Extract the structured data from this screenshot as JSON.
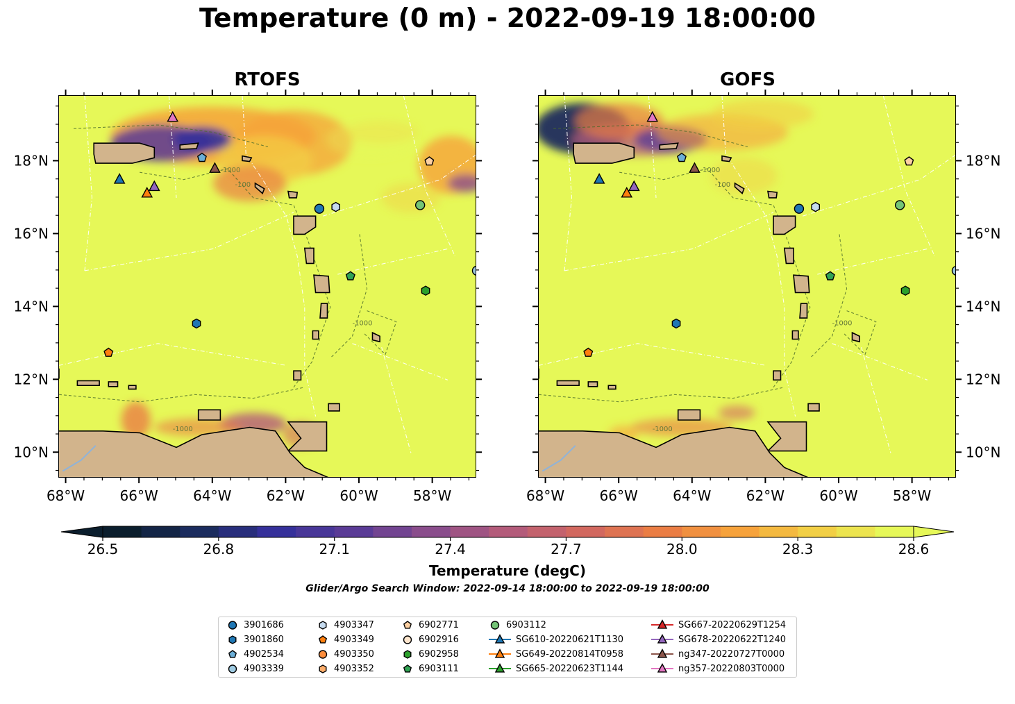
{
  "title": "Temperature (0 m) - 2022-09-19 18:00:00",
  "panels": [
    {
      "title": "RTOFS"
    },
    {
      "title": "GOFS"
    }
  ],
  "axes": {
    "x_ticks": [
      "68°W",
      "66°W",
      "64°W",
      "62°W",
      "60°W",
      "58°W"
    ],
    "y_ticks": [
      "18°N",
      "16°N",
      "14°N",
      "12°N",
      "10°N"
    ],
    "lon_range": [
      -68.2,
      -56.8
    ],
    "lat_range": [
      9.3,
      19.8
    ]
  },
  "contours": {
    "labels": [
      "-100",
      "-1000"
    ]
  },
  "colorbar": {
    "label": "Temperature (degC)",
    "ticks": [
      "26.5",
      "26.8",
      "27.1",
      "27.4",
      "27.7",
      "28.0",
      "28.3",
      "28.6"
    ],
    "range": [
      26.5,
      28.6
    ],
    "colors": [
      "#0b1e2d",
      "#1b2c5e",
      "#35309a",
      "#5a3b96",
      "#8a4d8c",
      "#b35b7a",
      "#d2685f",
      "#ea7d44",
      "#f6a23b",
      "#f2cf45",
      "#e6f858"
    ]
  },
  "search_window": "Glider/Argo Search Window: 2022-09-14 18:00:00 to 2022-09-19 18:00:00",
  "land_color": "#d2b48c",
  "water_color": "#e6f858",
  "legend": {
    "items": [
      {
        "label": "3901686",
        "marker": "circle",
        "color": "#1f77b4"
      },
      {
        "label": "3901860",
        "marker": "hexagon",
        "color": "#1f77b4"
      },
      {
        "label": "4902534",
        "marker": "pentagon",
        "color": "#6baed6"
      },
      {
        "label": "4903339",
        "marker": "circle",
        "color": "#9ecae1"
      },
      {
        "label": "4903347",
        "marker": "hexagon",
        "color": "#c6dbef"
      },
      {
        "label": "4903349",
        "marker": "pentagon",
        "color": "#ff7f0e"
      },
      {
        "label": "4903350",
        "marker": "circle",
        "color": "#fd8d3c"
      },
      {
        "label": "4903352",
        "marker": "hexagon",
        "color": "#fdae6b"
      },
      {
        "label": "6902771",
        "marker": "pentagon",
        "color": "#fdd0a2"
      },
      {
        "label": "6902916",
        "marker": "circle",
        "color": "#fee6ce"
      },
      {
        "label": "6902958",
        "marker": "hexagon",
        "color": "#2ca02c"
      },
      {
        "label": "6903111",
        "marker": "pentagon",
        "color": "#31a354"
      },
      {
        "label": "6903112",
        "marker": "circle",
        "color": "#74c476"
      },
      {
        "label": "SG610-20220621T1130",
        "marker": "triangle",
        "color": "#1f77b4"
      },
      {
        "label": "SG649-20220814T0958",
        "marker": "triangle",
        "color": "#ff7f0e"
      },
      {
        "label": "SG665-20220623T1144",
        "marker": "triangle",
        "color": "#2ca02c"
      },
      {
        "label": "SG667-20220629T1254",
        "marker": "triangle",
        "color": "#d62728"
      },
      {
        "label": "SG678-20220622T1240",
        "marker": "triangle",
        "color": "#9467bd"
      },
      {
        "label": "ng347-20220727T0000",
        "marker": "triangle",
        "color": "#8c564b"
      },
      {
        "label": "ng357-20220803T0000",
        "marker": "triangle",
        "color": "#e377c2"
      }
    ]
  },
  "platforms": [
    {
      "id": "3901686",
      "marker": "circle",
      "color": "#1f77b4",
      "lon": -61.1,
      "lat": 16.7
    },
    {
      "id": "4903347",
      "marker": "hexagon",
      "color": "#c6dbef",
      "lon": -60.65,
      "lat": 16.75
    },
    {
      "id": "6903112",
      "marker": "circle",
      "color": "#74c476",
      "lon": -58.35,
      "lat": 16.8
    },
    {
      "id": "6902771",
      "marker": "pentagon",
      "color": "#fdd0a2",
      "lon": -58.1,
      "lat": 18.0
    },
    {
      "id": "4903339",
      "marker": "circle",
      "color": "#9ecae1",
      "lon": -56.8,
      "lat": 15.0
    },
    {
      "id": "6903111",
      "marker": "pentagon",
      "color": "#31a354",
      "lon": -60.25,
      "lat": 14.85
    },
    {
      "id": "6902958",
      "marker": "hexagon",
      "color": "#2ca02c",
      "lon": -58.2,
      "lat": 14.45
    },
    {
      "id": "3901860",
      "marker": "hexagon",
      "color": "#1f77b4",
      "lon": -64.45,
      "lat": 13.55
    },
    {
      "id": "4903349",
      "marker": "pentagon",
      "color": "#ff7f0e",
      "lon": -66.85,
      "lat": 12.75
    },
    {
      "id": "4902534",
      "marker": "pentagon",
      "color": "#6baed6",
      "lon": -64.3,
      "lat": 18.1
    },
    {
      "id": "SG610-20220621T1130",
      "marker": "triangle",
      "color": "#1f77b4",
      "lon": -66.55,
      "lat": 17.5
    },
    {
      "id": "SG649-20220814T0958",
      "marker": "triangle",
      "color": "#ff7f0e",
      "lon": -65.8,
      "lat": 17.12
    },
    {
      "id": "SG678-20220622T1240",
      "marker": "triangle",
      "color": "#9467bd",
      "lon": -65.6,
      "lat": 17.3
    },
    {
      "id": "ng347-20220727T0000",
      "marker": "triangle",
      "color": "#8c564b",
      "lon": -63.95,
      "lat": 17.8
    },
    {
      "id": "ng357-20220803T0000",
      "marker": "triangle",
      "color": "#e377c2",
      "lon": -65.1,
      "lat": 19.2
    }
  ]
}
